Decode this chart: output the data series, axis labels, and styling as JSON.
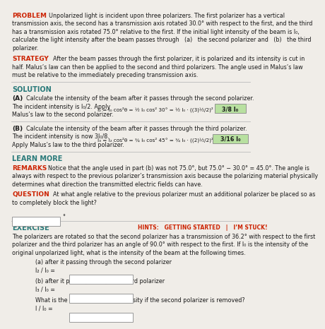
{
  "bg_color": "#f0ede8",
  "text_color": "#1a1a1a",
  "red_color": "#cc2200",
  "teal_color": "#2a7a7a",
  "highlight_color": "#b8e0a0",
  "divider_color": "#aaaaaa",
  "white": "#ffffff",
  "input_border": "#999999",
  "problem_lines": [
    "Unpolarized light is incident upon three polarizers. The first polarizer has a vertical",
    "transmission axis, the second has a transmission axis rotated 30.0° with respect to the first, and the third",
    "has a transmission axis rotated 75.0° relative to the first. If the initial light intensity of the beam is I₀,",
    "calculate the light intensity after the beam passes through   (a)   the second polarizer and   (b)   the third",
    "polarizer."
  ],
  "strategy_lines": [
    "After the beam passes through the first polarizer, it is polarized and its intensity is cut in",
    "half. Malus’s law can then be applied to the second and third polarizers. The angle used in Malus’s law",
    "must be relative to the immediately preceding transmission axis."
  ],
  "remarks_lines": [
    "Notice that the angle used in part (b) was not 75.0°, but 75.0° − 30.0° = 45.0°. The angle is",
    "always with respect to the previous polarizer’s transmission axis because the polarizing material physically",
    "determines what direction the transmitted electric fields can have."
  ],
  "exercise_lines": [
    "The polarizers are rotated so that the second polarizer has a transmission of 36.2° with respect to the first",
    "polarizer and the third polarizer has an angle of 90.0° with respect to the first. If I₀ is the intensity of the",
    "original unpolarized light, what is the intensity of the beam at the following times."
  ],
  "eq_a_left": "I₂ = I₀ cos²θ = ",
  "eq_a_mid": "I₀",
  "eq_a_frac_num": "I₀",
  "eq_a_full": "I₂ = I₀ cos²θ = ½ I₀ cos² 30° = ½ I₀ · ((3)½/2)² =",
  "eq_b_full": "I₃ = I₂ cos²θ = ¾ I₀ cos² 45° = ¾ I₀ · ((2)½/2)² =",
  "highlight_a": "3/8 I₀",
  "highlight_b": "3/16 I₀"
}
